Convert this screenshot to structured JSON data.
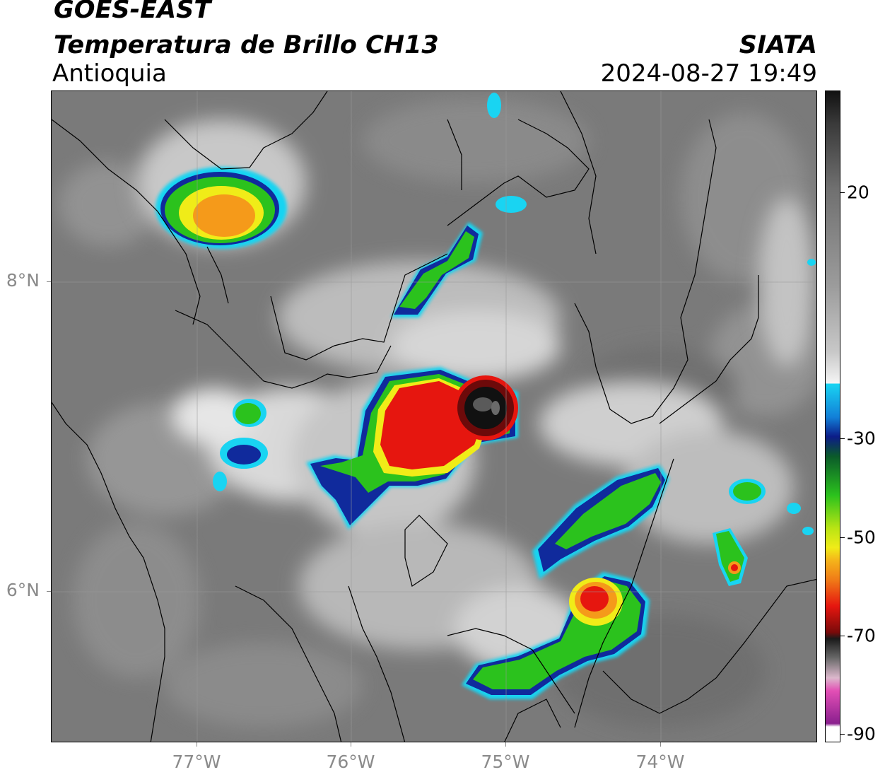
{
  "header": {
    "satellite": "GOES-EAST",
    "product": "Temperatura de Brillo CH13",
    "region": "Antioquia",
    "organization": "SIATA",
    "timestamp": "2024-08-27 19:49"
  },
  "axes": {
    "lat_labels": [
      "8°N",
      "6°N"
    ],
    "lon_labels": [
      "77°W",
      "76°W",
      "75°W",
      "74°W"
    ]
  },
  "colorbar": {
    "ticks": [
      "20",
      "-30",
      "-50",
      "-70",
      "-90"
    ],
    "min": -90,
    "max": 30,
    "colors": {
      "warm_gray": "#7b7b7b",
      "light_gray": "#f2f2f2",
      "cyan": "#19d4f2",
      "blue": "#102a9c",
      "green": "#2bc21d",
      "yellow": "#f0ec18",
      "orange": "#f59a1a",
      "red": "#e6160f",
      "dark_red": "#6d0a0a",
      "black": "#111111",
      "pink": "#e24fb5",
      "purple": "#8a1f8e"
    }
  }
}
